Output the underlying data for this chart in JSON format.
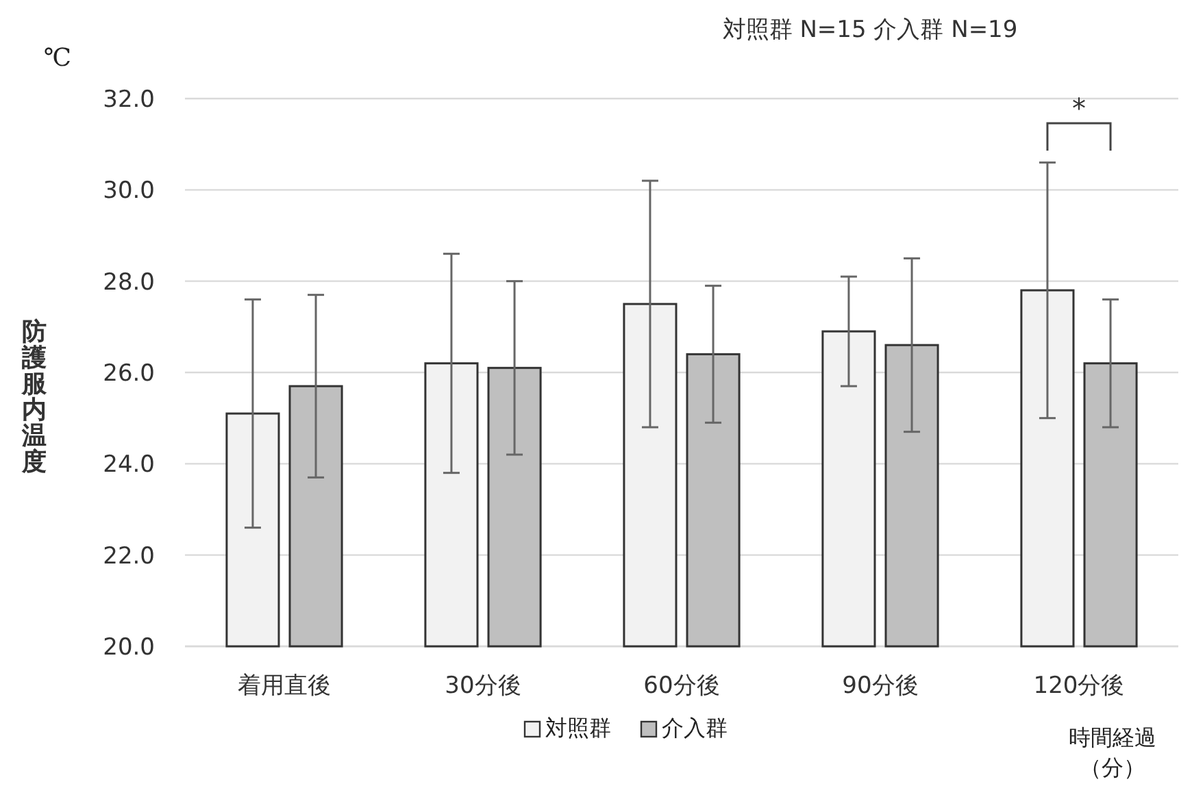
{
  "chart_data": {
    "type": "bar",
    "subtitle": "対照群 N=15 介入群 N=19",
    "ylabel": "防護服内温度",
    "xlabel": "時間経過（分）",
    "annotations": [
      "℃",
      "*"
    ],
    "categories": [
      "着用直後",
      "30分後",
      "60分後",
      "90分後",
      "120分後"
    ],
    "series": [
      {
        "name": "対照群",
        "color": "#f2f2f2",
        "values": [
          25.1,
          26.2,
          27.5,
          26.9,
          27.8
        ],
        "errors": [
          2.5,
          2.4,
          2.7,
          1.2,
          2.8
        ]
      },
      {
        "name": "介入群",
        "color": "#bfbfbf",
        "values": [
          25.7,
          26.1,
          26.4,
          26.6,
          26.2
        ],
        "errors": [
          2.0,
          1.9,
          1.5,
          1.9,
          1.4
        ]
      }
    ],
    "ylim": [
      20,
      32
    ],
    "yticks": [
      {
        "value": 20,
        "label": "20.0"
      },
      {
        "value": 22,
        "label": "22.0"
      },
      {
        "value": 24,
        "label": "24.0"
      },
      {
        "value": 26,
        "label": "26.0"
      },
      {
        "value": 28,
        "label": "28.0"
      },
      {
        "value": 30,
        "label": "30.0"
      },
      {
        "value": 32,
        "label": "32.0"
      }
    ],
    "grid": "y",
    "legend": "bottom"
  }
}
